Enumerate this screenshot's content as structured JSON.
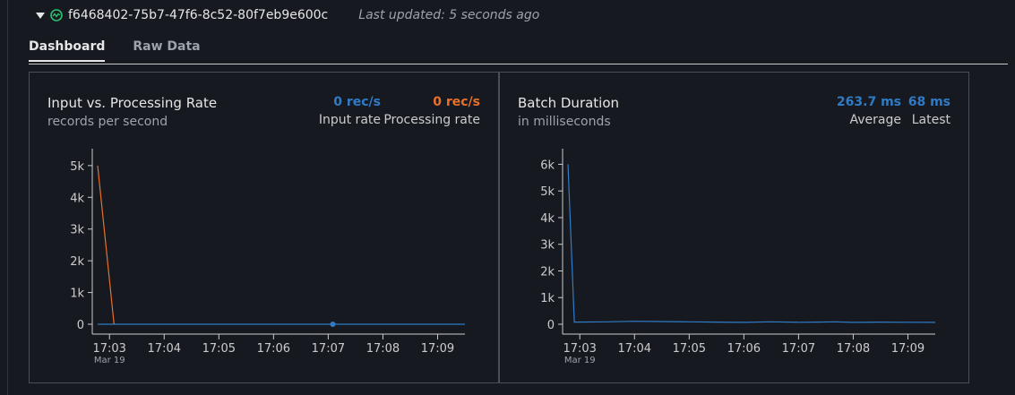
{
  "header": {
    "run_id": "f6468402-75b7-47f6-8c52-80f7eb9e600c",
    "last_updated": "Last updated: 5 seconds ago"
  },
  "tabs": [
    {
      "label": "Dashboard",
      "active": true
    },
    {
      "label": "Raw Data",
      "active": false
    }
  ],
  "colors": {
    "input": "#2f7bc7",
    "processing": "#e8702a",
    "batch": "#2f7bc7"
  },
  "panels": {
    "rate": {
      "title": "Input vs. Processing Rate",
      "subtitle": "records per second",
      "metrics": [
        {
          "value": "0 rec/s",
          "label": "Input rate"
        },
        {
          "value": "0 rec/s",
          "label": "Processing rate"
        }
      ]
    },
    "batch": {
      "title": "Batch Duration",
      "subtitle": "in milliseconds",
      "metrics": [
        {
          "value": "263.7 ms",
          "label": "Average"
        },
        {
          "value": "68 ms",
          "label": "Latest"
        }
      ]
    }
  },
  "chart_data": [
    {
      "type": "line",
      "title": "Input vs. Processing Rate",
      "x_range": [
        "17:02:47",
        "17:09:30"
      ],
      "x_ticks": [
        "17:03",
        "17:04",
        "17:05",
        "17:06",
        "17:07",
        "17:08",
        "17:09"
      ],
      "x_date_label": "Mar 19",
      "y_ticks": [
        "0",
        "1k",
        "2k",
        "3k",
        "4k",
        "5k"
      ],
      "ylim": [
        0,
        5250
      ],
      "series": [
        {
          "name": "Input rate",
          "x": [
            "17:02:47",
            "17:07:05",
            "17:09:30"
          ],
          "y": [
            0,
            0,
            0
          ],
          "marker_at": "17:07:05"
        },
        {
          "name": "Processing rate",
          "x": [
            "17:02:47",
            "17:03:05"
          ],
          "y": [
            5000,
            0
          ]
        }
      ]
    },
    {
      "type": "line",
      "title": "Batch Duration",
      "x_range": [
        "17:02:47",
        "17:09:30"
      ],
      "x_ticks": [
        "17:03",
        "17:04",
        "17:05",
        "17:06",
        "17:07",
        "17:08",
        "17:09"
      ],
      "x_date_label": "Mar 19",
      "y_ticks": [
        "0",
        "1k",
        "2k",
        "3k",
        "4k",
        "5k",
        "6k"
      ],
      "ylim": [
        0,
        6250
      ],
      "series": [
        {
          "name": "Batch duration",
          "x": [
            "17:02:47",
            "17:02:54",
            "17:03:30",
            "17:04:00",
            "17:04:30",
            "17:05:00",
            "17:05:30",
            "17:06:00",
            "17:06:30",
            "17:07:00",
            "17:07:20",
            "17:07:40",
            "17:08:00",
            "17:08:30",
            "17:09:00",
            "17:09:30"
          ],
          "y": [
            6000,
            80,
            90,
            110,
            100,
            90,
            80,
            70,
            90,
            75,
            80,
            90,
            70,
            80,
            75,
            70
          ]
        }
      ]
    }
  ]
}
